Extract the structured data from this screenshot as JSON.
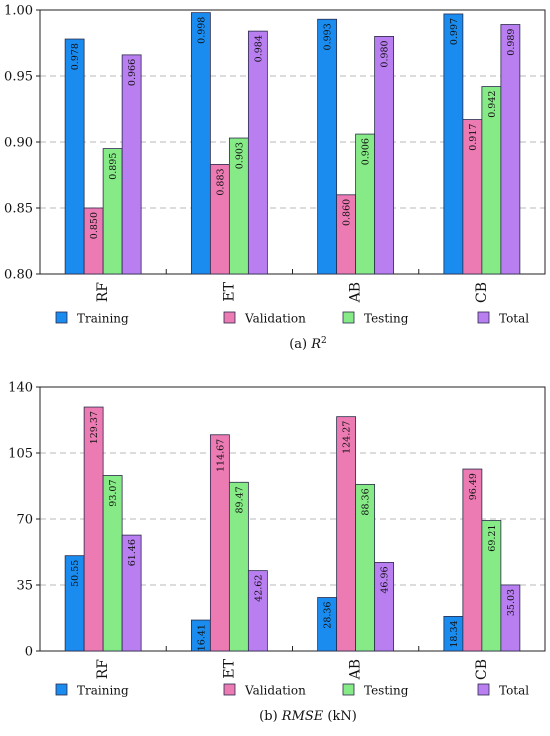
{
  "colors": {
    "Training": "#1a8cf0",
    "Validation": "#ec7bb3",
    "Testing": "#86ea86",
    "Total": "#b97ff0"
  },
  "chart_data": [
    {
      "type": "bar",
      "caption": {
        "prefix": "(a) ",
        "label": "R",
        "sup": "2",
        "suffix": ""
      },
      "categories": [
        "RF",
        "ET",
        "AB",
        "CB"
      ],
      "series": [
        {
          "name": "Training",
          "values": [
            0.978,
            0.998,
            0.993,
            0.997
          ],
          "labels": [
            "0.978",
            "0.998",
            "0.993",
            "0.997"
          ]
        },
        {
          "name": "Validation",
          "values": [
            0.85,
            0.883,
            0.86,
            0.917
          ],
          "labels": [
            "0.850",
            "0.883",
            "0.860",
            "0.917"
          ]
        },
        {
          "name": "Testing",
          "values": [
            0.895,
            0.903,
            0.906,
            0.942
          ],
          "labels": [
            "0.895",
            "0.903",
            "0.906",
            "0.942"
          ]
        },
        {
          "name": "Total",
          "values": [
            0.966,
            0.984,
            0.98,
            0.989
          ],
          "labels": [
            "0.966",
            "0.984",
            "0.980",
            "0.989"
          ]
        }
      ],
      "ylim": [
        0.8,
        1.0
      ],
      "yticks": [
        "0.80",
        "0.85",
        "0.90",
        "0.95",
        "1.00"
      ],
      "grid": true,
      "legend": "bottom"
    },
    {
      "type": "bar",
      "caption": {
        "prefix": "(b) ",
        "label": "RMSE",
        "sup": "",
        "suffix": " (kN)"
      },
      "categories": [
        "RF",
        "ET",
        "AB",
        "CB"
      ],
      "series": [
        {
          "name": "Training",
          "values": [
            50.55,
            16.41,
            28.36,
            18.34
          ],
          "labels": [
            "50.55",
            "16.41",
            "28.36",
            "18.34"
          ]
        },
        {
          "name": "Validation",
          "values": [
            129.37,
            114.67,
            124.27,
            96.49
          ],
          "labels": [
            "129.37",
            "114.67",
            "124.27",
            "96.49"
          ]
        },
        {
          "name": "Testing",
          "values": [
            93.07,
            89.47,
            88.36,
            69.21
          ],
          "labels": [
            "93.07",
            "89.47",
            "88.36",
            "69.21"
          ]
        },
        {
          "name": "Total",
          "values": [
            61.46,
            42.62,
            46.96,
            35.03
          ],
          "labels": [
            "61.46",
            "42.62",
            "46.96",
            "35.03"
          ]
        }
      ],
      "ylim": [
        0,
        140
      ],
      "yticks": [
        "0",
        "35",
        "70",
        "105",
        "140"
      ],
      "grid": true,
      "legend": "bottom"
    }
  ]
}
